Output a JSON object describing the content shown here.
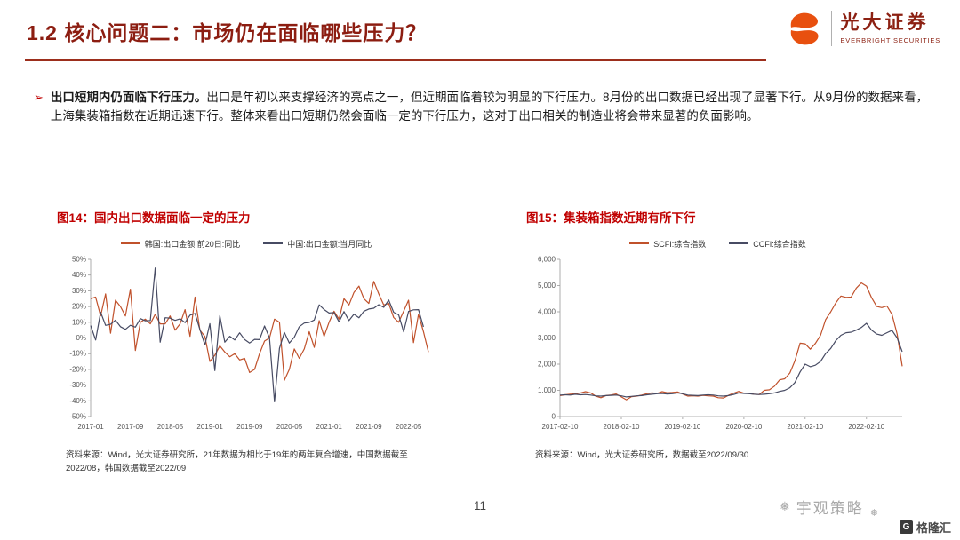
{
  "header": {
    "title": "1.2 核心问题二：市场仍在面临哪些压力？",
    "logo_cn": "光大证券",
    "logo_en": "EVERBRIGHT SECURITIES"
  },
  "bullet": {
    "marker": "➢",
    "lead": "出口短期内仍面临下行压力。",
    "text": "出口是年初以来支撑经济的亮点之一，但近期面临着较为明显的下行压力。8月份的出口数据已经出现了显著下行。从9月份的数据来看，上海集装箱指数在近期迅速下行。整体来看出口短期仍然会面临一定的下行压力，这对于出口相关的制造业将会带来显著的负面影响。"
  },
  "colors": {
    "title_red": "#8C1D11",
    "rule_red": "#9C2E1C",
    "figure_title_red": "#C00000",
    "series_orange": "#C0512B",
    "series_navy": "#474B63",
    "logo_orange": "#E8500F"
  },
  "chart_data": [
    {
      "id": "fig14",
      "type": "line",
      "title": "图14：国内出口数据面临一定的压力",
      "y_min": -50,
      "y_max": 50,
      "y_step": 10,
      "y_suffix": "%",
      "x_ticks": [
        {
          "label": "2017-01",
          "i": 0
        },
        {
          "label": "2017-09",
          "i": 8
        },
        {
          "label": "2018-05",
          "i": 16
        },
        {
          "label": "2019-01",
          "i": 24
        },
        {
          "label": "2019-09",
          "i": 32
        },
        {
          "label": "2020-05",
          "i": 40
        },
        {
          "label": "2021-01",
          "i": 48
        },
        {
          "label": "2021-09",
          "i": 56
        },
        {
          "label": "2022-05",
          "i": 64
        }
      ],
      "series": [
        {
          "name": "韩国:出口金额:前20日:同比",
          "color": "#C0512B",
          "values": [
            25,
            26,
            14,
            28,
            3,
            24,
            20,
            14,
            31,
            -8,
            10,
            12,
            9,
            15,
            9,
            9,
            14,
            5,
            9,
            18,
            1,
            26,
            5,
            1,
            -15,
            -11,
            -5,
            -9,
            -12,
            -10,
            -14,
            -13,
            -22,
            -20,
            -10,
            -2,
            0,
            12,
            10,
            -27,
            -20,
            -7,
            -13,
            -7,
            4,
            -6,
            11,
            1,
            10,
            17,
            12,
            25,
            21,
            29,
            33,
            25,
            22,
            36,
            28,
            21,
            22,
            13,
            10,
            17,
            24,
            -3,
            15,
            4,
            -9
          ]
        },
        {
          "name": "中国:出口金额:当月同比",
          "color": "#474B63",
          "values": [
            7.9,
            -1.3,
            16.4,
            8,
            8.7,
            11.3,
            7.2,
            5.5,
            8.1,
            6.9,
            12.3,
            10.9,
            11.1,
            44.5,
            -2.7,
            12.9,
            12.6,
            11.2,
            12.2,
            9.8,
            14.5,
            15.6,
            5.4,
            -4.4,
            9.1,
            -20.8,
            14.2,
            -2.7,
            1.1,
            -1.3,
            3.3,
            -1,
            -3.2,
            -0.9,
            -1.1,
            7.6,
            0,
            -40.6,
            -6.6,
            3.5,
            -3.3,
            0.5,
            7.2,
            9.5,
            9.9,
            11.4,
            21.1,
            18.1,
            15.9,
            16.2,
            10.3,
            16.8,
            11.1,
            15.1,
            12.9,
            17,
            18.4,
            18.9,
            21.2,
            19.5,
            24.1,
            16.3,
            14.7,
            3.9,
            16.9,
            17.9,
            18,
            7.1
          ]
        }
      ],
      "source": "资料来源：Wind，光大证券研究所，21年数据为相比于19年的两年复合增速，中国数据截至2022/08，韩国数据截至2022/09"
    },
    {
      "id": "fig15",
      "type": "line",
      "title": "图15：集装箱指数近期有所下行",
      "y_min": 0,
      "y_max": 6000,
      "y_step": 1000,
      "y_comma": true,
      "x_ticks": [
        {
          "label": "2017-02-10",
          "i": 0
        },
        {
          "label": "2018-02-10",
          "i": 12
        },
        {
          "label": "2019-02-10",
          "i": 24
        },
        {
          "label": "2020-02-10",
          "i": 36
        },
        {
          "label": "2021-02-10",
          "i": 48
        },
        {
          "label": "2022-02-10",
          "i": 60
        }
      ],
      "series": [
        {
          "name": "SCFI:综合指数",
          "color": "#C0512B",
          "values": [
            800,
            830,
            850,
            870,
            900,
            950,
            900,
            780,
            720,
            800,
            824,
            860,
            750,
            640,
            760,
            780,
            820,
            870,
            900,
            880,
            950,
            910,
            920,
            940,
            860,
            780,
            790,
            780,
            810,
            790,
            780,
            720,
            710,
            810,
            890,
            960,
            890,
            880,
            850,
            840,
            1000,
            1020,
            1160,
            1400,
            1440,
            1660,
            2130,
            2800,
            2775,
            2570,
            2790,
            3100,
            3700,
            4000,
            4340,
            4600,
            4550,
            4560,
            4900,
            5100,
            4980,
            4540,
            4200,
            4160,
            4220,
            3900,
            3150,
            1920
          ]
        },
        {
          "name": "CCFI:综合指数",
          "color": "#474B63",
          "values": [
            820,
            830,
            820,
            850,
            830,
            840,
            820,
            790,
            780,
            800,
            810,
            820,
            790,
            750,
            770,
            790,
            800,
            830,
            850,
            870,
            880,
            860,
            870,
            900,
            870,
            820,
            810,
            800,
            820,
            830,
            820,
            790,
            780,
            800,
            840,
            900,
            880,
            870,
            850,
            840,
            850,
            870,
            900,
            960,
            1000,
            1100,
            1300,
            1700,
            2000,
            1900,
            1960,
            2100,
            2400,
            2600,
            2900,
            3100,
            3200,
            3220,
            3300,
            3400,
            3560,
            3300,
            3150,
            3100,
            3200,
            3290,
            3000,
            2475
          ]
        }
      ],
      "source": "资料来源：Wind，光大证券研究所，数据截至2022/09/30"
    }
  ],
  "footer": {
    "page_number": "11",
    "watermark": "宇观策略",
    "watermark_icon": "❅",
    "brand": "格隆汇",
    "brand_letter": "G"
  }
}
